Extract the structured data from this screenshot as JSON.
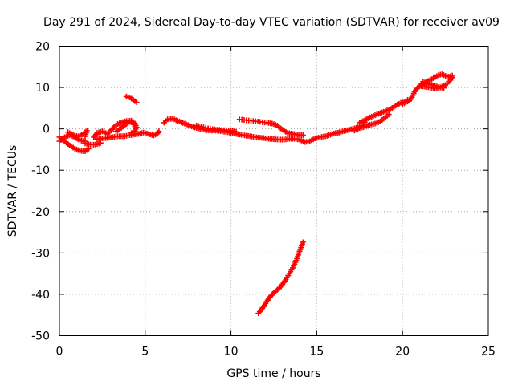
{
  "chart_data": {
    "type": "scatter",
    "title": "Day 291 of 2024, Sidereal Day-to-day VTEC variation (SDTVAR) for receiver av09",
    "xlabel": "GPS time / hours",
    "ylabel": "SDTVAR / TECUs",
    "xlim": [
      0,
      25
    ],
    "ylim": [
      -50,
      20
    ],
    "xticks": [
      0,
      5,
      10,
      15,
      20,
      25
    ],
    "yticks": [
      20,
      10,
      0,
      -10,
      -20,
      -30,
      -40,
      -50
    ],
    "grid": true,
    "marker": "+",
    "color": "#ff0000",
    "series": [
      {
        "name": "SDTVAR",
        "segments": [
          [
            [
              0.0,
              -2.0
            ],
            [
              0.3,
              -3.0
            ],
            [
              0.6,
              -4.0
            ],
            [
              0.9,
              -4.8
            ],
            [
              1.2,
              -5.3
            ],
            [
              1.5,
              -5.4
            ],
            [
              1.7,
              -4.8
            ]
          ],
          [
            [
              0.0,
              -3.0
            ],
            [
              0.3,
              -2.0
            ],
            [
              0.6,
              -1.5
            ],
            [
              0.9,
              -2.0
            ],
            [
              1.2,
              -2.8
            ],
            [
              1.5,
              -3.0
            ]
          ],
          [
            [
              0.5,
              -0.8
            ],
            [
              0.8,
              -1.5
            ],
            [
              1.1,
              -1.8
            ],
            [
              1.4,
              -1.2
            ],
            [
              1.6,
              -0.4
            ],
            [
              1.5,
              -1.8
            ]
          ],
          [
            [
              1.5,
              -3.5
            ],
            [
              1.8,
              -3.8
            ],
            [
              2.1,
              -3.8
            ],
            [
              2.4,
              -3.4
            ]
          ],
          [
            [
              2.2,
              -2.5
            ],
            [
              2.5,
              -2.3
            ],
            [
              2.8,
              -2.2
            ],
            [
              3.1,
              -2.0
            ],
            [
              3.4,
              -1.8
            ],
            [
              3.7,
              -1.8
            ],
            [
              4.0,
              -1.6
            ],
            [
              4.3,
              -1.4
            ],
            [
              4.6,
              -1.2
            ],
            [
              4.9,
              -0.9
            ],
            [
              5.2,
              -1.2
            ],
            [
              5.5,
              -1.6
            ],
            [
              5.7,
              -1.2
            ],
            [
              5.8,
              -0.6
            ]
          ],
          [
            [
              2.0,
              -2.0
            ],
            [
              2.2,
              -1.0
            ],
            [
              2.5,
              -0.6
            ],
            [
              2.8,
              -1.2
            ],
            [
              3.0,
              -0.4
            ],
            [
              3.2,
              0.5
            ],
            [
              3.4,
              1.2
            ],
            [
              3.6,
              1.5
            ],
            [
              3.8,
              1.8
            ],
            [
              4.0,
              2.0
            ],
            [
              4.2,
              2.0
            ],
            [
              4.4,
              1.3
            ],
            [
              4.5,
              0.4
            ],
            [
              4.4,
              -0.5
            ],
            [
              4.2,
              -1.0
            ]
          ],
          [
            [
              3.3,
              -0.6
            ],
            [
              3.6,
              0.2
            ],
            [
              3.9,
              1.2
            ],
            [
              4.1,
              1.7
            ],
            [
              4.3,
              1.5
            ],
            [
              4.4,
              0.6
            ]
          ],
          [
            [
              3.9,
              7.8
            ],
            [
              4.1,
              7.6
            ],
            [
              4.3,
              7.0
            ],
            [
              4.5,
              6.4
            ]
          ],
          [
            [
              6.1,
              1.5
            ],
            [
              6.3,
              2.3
            ],
            [
              6.6,
              2.5
            ],
            [
              6.8,
              2.1
            ],
            [
              7.1,
              1.6
            ],
            [
              7.4,
              1.1
            ],
            [
              7.7,
              0.6
            ],
            [
              8.0,
              0.2
            ],
            [
              8.3,
              -0.1
            ],
            [
              8.6,
              -0.3
            ],
            [
              8.9,
              -0.4
            ],
            [
              9.2,
              -0.4
            ],
            [
              9.5,
              -0.6
            ],
            [
              9.8,
              -0.8
            ],
            [
              10.1,
              -1.0
            ],
            [
              10.4,
              -1.3
            ],
            [
              10.7,
              -1.5
            ],
            [
              11.0,
              -1.7
            ],
            [
              11.3,
              -1.9
            ],
            [
              11.6,
              -2.1
            ],
            [
              11.9,
              -2.2
            ],
            [
              12.2,
              -2.4
            ],
            [
              12.5,
              -2.5
            ],
            [
              12.8,
              -2.6
            ],
            [
              13.1,
              -2.6
            ],
            [
              13.4,
              -2.4
            ],
            [
              13.7,
              -2.4
            ],
            [
              14.0,
              -2.6
            ],
            [
              14.3,
              -3.2
            ],
            [
              14.6,
              -3.0
            ],
            [
              14.9,
              -2.3
            ],
            [
              15.2,
              -2.0
            ],
            [
              15.5,
              -1.8
            ],
            [
              15.8,
              -1.4
            ],
            [
              16.1,
              -1.0
            ],
            [
              16.4,
              -0.8
            ]
          ],
          [
            [
              8.0,
              0.8
            ],
            [
              8.4,
              0.4
            ],
            [
              8.8,
              0.0
            ],
            [
              9.2,
              -0.2
            ],
            [
              9.6,
              -0.3
            ],
            [
              10.0,
              -0.4
            ],
            [
              10.3,
              -0.7
            ]
          ],
          [
            [
              10.5,
              2.3
            ],
            [
              10.9,
              2.1
            ],
            [
              11.3,
              1.9
            ],
            [
              11.7,
              1.7
            ],
            [
              12.1,
              1.5
            ],
            [
              12.4,
              1.3
            ],
            [
              12.7,
              0.8
            ],
            [
              13.0,
              -0.2
            ],
            [
              13.3,
              -1.0
            ],
            [
              13.6,
              -1.2
            ],
            [
              13.9,
              -1.4
            ],
            [
              14.2,
              -1.5
            ]
          ],
          [
            [
              16.2,
              -1.0
            ],
            [
              16.5,
              -0.6
            ],
            [
              16.8,
              -0.3
            ],
            [
              17.1,
              0.0
            ],
            [
              17.4,
              0.4
            ],
            [
              17.7,
              0.8
            ],
            [
              17.8,
              1.6
            ]
          ],
          [
            [
              17.2,
              -0.4
            ],
            [
              17.5,
              0.2
            ],
            [
              17.8,
              0.5
            ],
            [
              18.1,
              1.0
            ],
            [
              18.4,
              1.3
            ],
            [
              18.7,
              1.8
            ],
            [
              19.0,
              2.8
            ],
            [
              19.2,
              3.5
            ]
          ],
          [
            [
              17.5,
              1.5
            ],
            [
              17.8,
              2.1
            ],
            [
              18.1,
              2.8
            ],
            [
              18.4,
              3.3
            ],
            [
              18.7,
              3.8
            ],
            [
              19.0,
              4.3
            ],
            [
              19.3,
              4.8
            ],
            [
              19.6,
              5.6
            ],
            [
              19.9,
              6.3
            ],
            [
              20.1,
              6.4
            ],
            [
              20.3,
              7.0
            ]
          ],
          [
            [
              20.0,
              6.0
            ],
            [
              20.3,
              6.6
            ],
            [
              20.5,
              7.2
            ],
            [
              20.7,
              9.0
            ],
            [
              20.9,
              10.0
            ],
            [
              21.1,
              10.7
            ],
            [
              21.3,
              11.0
            ],
            [
              21.5,
              11.6
            ],
            [
              21.7,
              12.0
            ],
            [
              21.9,
              12.5
            ],
            [
              22.1,
              13.0
            ],
            [
              22.3,
              13.2
            ],
            [
              22.5,
              12.8
            ],
            [
              22.7,
              12.6
            ],
            [
              22.9,
              12.9
            ]
          ],
          [
            [
              21.0,
              10.4
            ],
            [
              21.3,
              10.2
            ],
            [
              21.6,
              10.0
            ],
            [
              21.9,
              9.8
            ],
            [
              22.2,
              10.0
            ],
            [
              22.5,
              10.6
            ],
            [
              22.8,
              11.8
            ],
            [
              22.9,
              12.5
            ]
          ],
          [
            [
              21.2,
              11.4
            ],
            [
              21.5,
              10.9
            ],
            [
              21.8,
              10.5
            ],
            [
              22.1,
              10.1
            ],
            [
              22.4,
              9.9
            ]
          ],
          [
            [
              11.6,
              -44.6
            ],
            [
              11.9,
              -43.0
            ],
            [
              12.2,
              -41.0
            ],
            [
              12.5,
              -39.6
            ],
            [
              12.8,
              -38.6
            ],
            [
              13.0,
              -37.6
            ],
            [
              13.2,
              -36.4
            ],
            [
              13.4,
              -35.0
            ],
            [
              13.6,
              -33.6
            ],
            [
              13.8,
              -31.8
            ],
            [
              14.0,
              -29.6
            ],
            [
              14.2,
              -27.4
            ]
          ]
        ]
      }
    ]
  }
}
